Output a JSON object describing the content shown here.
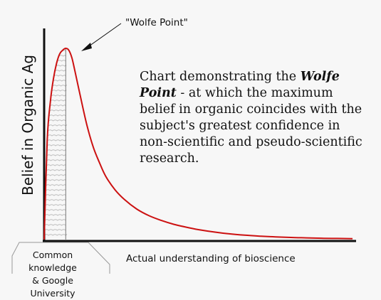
{
  "chart_data": {
    "type": "line",
    "title": "",
    "xlabel": "Actual understanding of bioscience",
    "ylabel": "Belief in Organic Ag",
    "peak_label": "\"Wolfe Point\"",
    "region_label_line1": "Common knowledge",
    "region_label_line2": "& Google University",
    "annotation": {
      "prefix": "Chart demonstrating the ",
      "emphasis": "Wolfe Point",
      "suffix": " - at which the maximum belief in organic coincides with the subject's greatest confidence in non-scientific and pseudo-scientific research."
    },
    "series": [
      {
        "x": [
          0,
          1,
          2,
          3,
          4,
          5,
          6,
          7,
          8,
          9,
          10,
          12,
          14,
          16,
          18,
          20,
          23,
          26,
          30,
          34,
          38,
          42,
          46,
          50,
          55,
          60,
          65,
          70,
          75,
          80,
          85,
          90,
          95,
          100
        ],
        "values": [
          0,
          52,
          72,
          84,
          92,
          97,
          99,
          100,
          99,
          95,
          88,
          73,
          59,
          48,
          40,
          33,
          26,
          21,
          16,
          12.5,
          10,
          8,
          6.5,
          5.2,
          4,
          3,
          2.3,
          1.8,
          1.4,
          1.1,
          0.9,
          0.7,
          0.6,
          0.5
        ]
      }
    ],
    "xlim": [
      0,
      100
    ],
    "ylim": [
      0,
      100
    ],
    "peak_x": 7,
    "colors": {
      "curve": "#cc1111",
      "axes": "#111111",
      "hatch": "#bbbbbb"
    }
  }
}
